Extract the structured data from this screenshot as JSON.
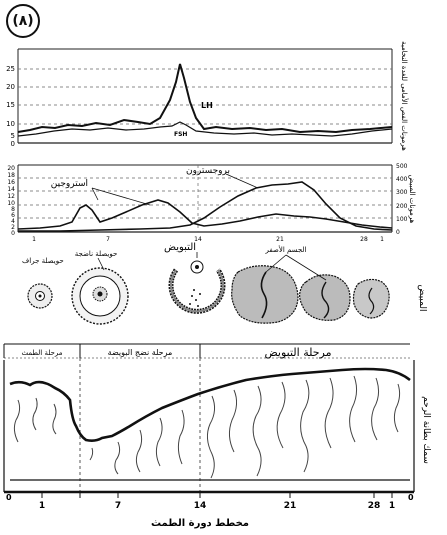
{
  "badge": "(٨)",
  "hormone_top": {
    "y_ticks": [
      "25",
      "20",
      "15",
      "10",
      "5",
      "0"
    ],
    "lh_label": "LH",
    "fsh_label": "FSH",
    "side_label": "هرمونات الفص الأمامى للغدة النخامية"
  },
  "hormone_bottom": {
    "y_ticks_left": [
      "20",
      "18",
      "16",
      "14",
      "12",
      "10",
      "8",
      "6",
      "4",
      "2",
      "0"
    ],
    "y_ticks_right": [
      "500",
      "400",
      "300",
      "200",
      "100",
      "0"
    ],
    "estrogen_label": "استروجين",
    "progesterone_label": "بروجسترون",
    "side_label": "هرمونات المبيض",
    "x_ticks": [
      "1",
      "7",
      "14",
      "21",
      "28",
      "1"
    ]
  },
  "ovary": {
    "ovulation_label": "التبويض",
    "follicle_label": "حويصلة جراف",
    "mature_follicle_label": "حويصلة ناضجة",
    "corpus_label": "الجسم الأصفر",
    "side_label": "المبيض"
  },
  "uterus": {
    "phases": [
      "مرحلة الطمث",
      "مرحلة نضج البويضة",
      "مرحلة التبويض"
    ],
    "side_label": "سمك بطانة الرحم",
    "x_ticks": [
      "1",
      "7",
      "14",
      "21",
      "28",
      "1"
    ],
    "zero": "0",
    "caption": "مخطط دورة الطمث"
  }
}
